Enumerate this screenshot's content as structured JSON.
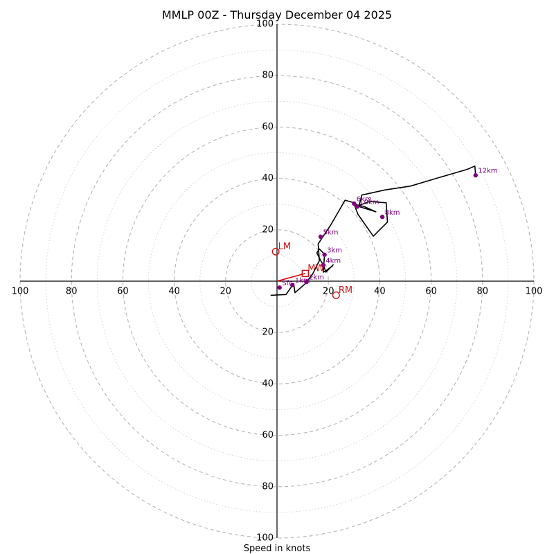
{
  "chart_data": {
    "type": "hodograph",
    "title": "MMLP 00Z - Thursday December 04 2025",
    "xlabel": "Speed in knots",
    "max_speed": 100,
    "ring_step": 20,
    "minor_ring_step": 10,
    "tick_labels": {
      "top": [
        "20",
        "40",
        "60",
        "80",
        "100"
      ],
      "bottom": [
        "20",
        "40",
        "60",
        "80",
        "100"
      ],
      "left": [
        "20",
        "40",
        "60",
        "80",
        "100"
      ],
      "right": [
        "20",
        "40",
        "60",
        "80",
        "100"
      ]
    },
    "hodograph_trace": [
      [
        -2.5,
        -5.5
      ],
      [
        3.5,
        -5.2
      ],
      [
        6.5,
        -1.0
      ],
      [
        7.0,
        -4.5
      ],
      [
        11.0,
        -1.0
      ],
      [
        14.0,
        3.0
      ],
      [
        16.5,
        8.0
      ],
      [
        16.0,
        14.5
      ],
      [
        18.0,
        17.5
      ],
      [
        21.0,
        22.0
      ],
      [
        26.5,
        31.5
      ],
      [
        30.0,
        30.5
      ],
      [
        32.0,
        29.0
      ],
      [
        38.5,
        27.0
      ],
      [
        34.0,
        29.0
      ],
      [
        30.0,
        30.0
      ],
      [
        31.5,
        26.0
      ],
      [
        37.5,
        17.5
      ],
      [
        43.0,
        23.0
      ],
      [
        42.5,
        30.5
      ],
      [
        36.0,
        31.0
      ],
      [
        32.0,
        29.5
      ],
      [
        33.0,
        33.5
      ],
      [
        42.0,
        35.5
      ],
      [
        52.0,
        37.0
      ],
      [
        62.0,
        40.0
      ],
      [
        74.0,
        43.5
      ],
      [
        77.0,
        44.8
      ],
      [
        77.3,
        41.2
      ]
    ],
    "hook_segment": [
      [
        21.7,
        6.0
      ],
      [
        19.0,
        4.0
      ],
      [
        18.0,
        3.5
      ],
      [
        18.5,
        10.0
      ],
      [
        18.0,
        11.0
      ],
      [
        16.5,
        12.5
      ],
      [
        15.5,
        11.0
      ],
      [
        17.0,
        8.0
      ],
      [
        18.2,
        6.0
      ],
      [
        19.0,
        3.5
      ],
      [
        22.0,
        6.5
      ]
    ],
    "height_markers": [
      {
        "label": "Sfc",
        "u": 1.0,
        "v": -2.5
      },
      {
        "label": "1km",
        "u": 6.0,
        "v": -1.5
      },
      {
        "label": "2km",
        "u": 11.5,
        "v": -0.3
      },
      {
        "label": "4km",
        "u": 18.0,
        "v": 6.2
      },
      {
        "label": "3km",
        "u": 18.5,
        "v": 10.3
      },
      {
        "label": "5km",
        "u": 17.0,
        "v": 17.3
      },
      {
        "label": "6km",
        "u": 30.0,
        "v": 30.2
      },
      {
        "label": "10km",
        "u": 31.2,
        "v": 29.0
      },
      {
        "label": "8km",
        "u": 41.0,
        "v": 25.0
      },
      {
        "label": "12km",
        "u": 77.3,
        "v": 41.2
      }
    ],
    "storm_motion": [
      {
        "label": "LM",
        "u": -0.5,
        "v": 11.5
      },
      {
        "label": "MW",
        "u": 11.0,
        "v": 3.0
      },
      {
        "label": "RM",
        "u": 23.0,
        "v": -5.5
      }
    ],
    "mean_wind_vector": {
      "from": [
        0,
        0
      ],
      "to": [
        11.0,
        3.0
      ]
    },
    "colors": {
      "trace": "#000000",
      "height_marker": "#800080",
      "storm_motion": "#cc1111",
      "mean_wind_vector": "#e00000",
      "ring": "#b4b4b4",
      "minor_ring": "#cfcfcf",
      "axis": "#000000"
    }
  }
}
